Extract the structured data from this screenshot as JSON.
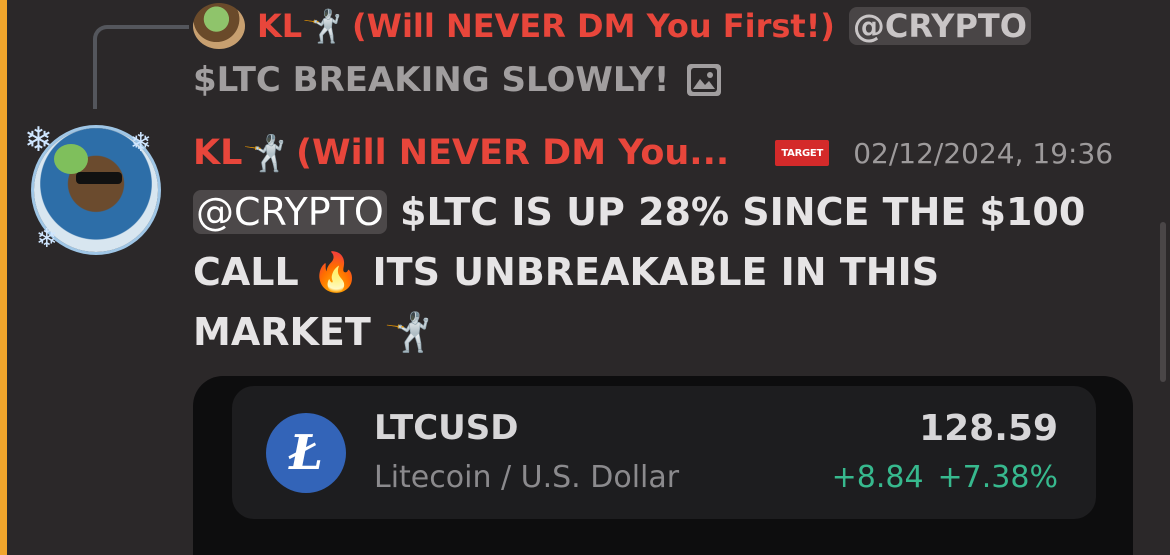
{
  "reply": {
    "author": "KL",
    "author_emoji": "🤺",
    "author_tag": "(Will NEVER DM You First!)",
    "mention": "@CRYPTO",
    "text": "$LTC BREAKING SLOWLY!",
    "attachment_icon": "image-icon"
  },
  "message": {
    "author": "KL",
    "author_emoji": "🤺",
    "author_tag": "(Will NEVER DM You...",
    "role_badge": "TARGET",
    "timestamp": "02/12/2024, 19:36",
    "mention": "@CRYPTO",
    "text_1": "$LTC IS UP 28% SINCE THE $100 CALL",
    "fire_emoji": "🔥",
    "text_2": "ITS UNBREAKABLE IN THIS MARKET",
    "end_emoji": "🤺"
  },
  "ticker": {
    "symbol": "LTCUSD",
    "name": "Litecoin / U.S. Dollar",
    "logo_letter": "Ł",
    "price": "128.59",
    "change_abs": "+8.84",
    "change_pct": "+7.38%",
    "change_color": "#37b98e",
    "logo_color": "#3364b8"
  },
  "colors": {
    "author_name": "#e8463b",
    "accent_bar": "#f0a52c",
    "background": "#2b2829"
  }
}
